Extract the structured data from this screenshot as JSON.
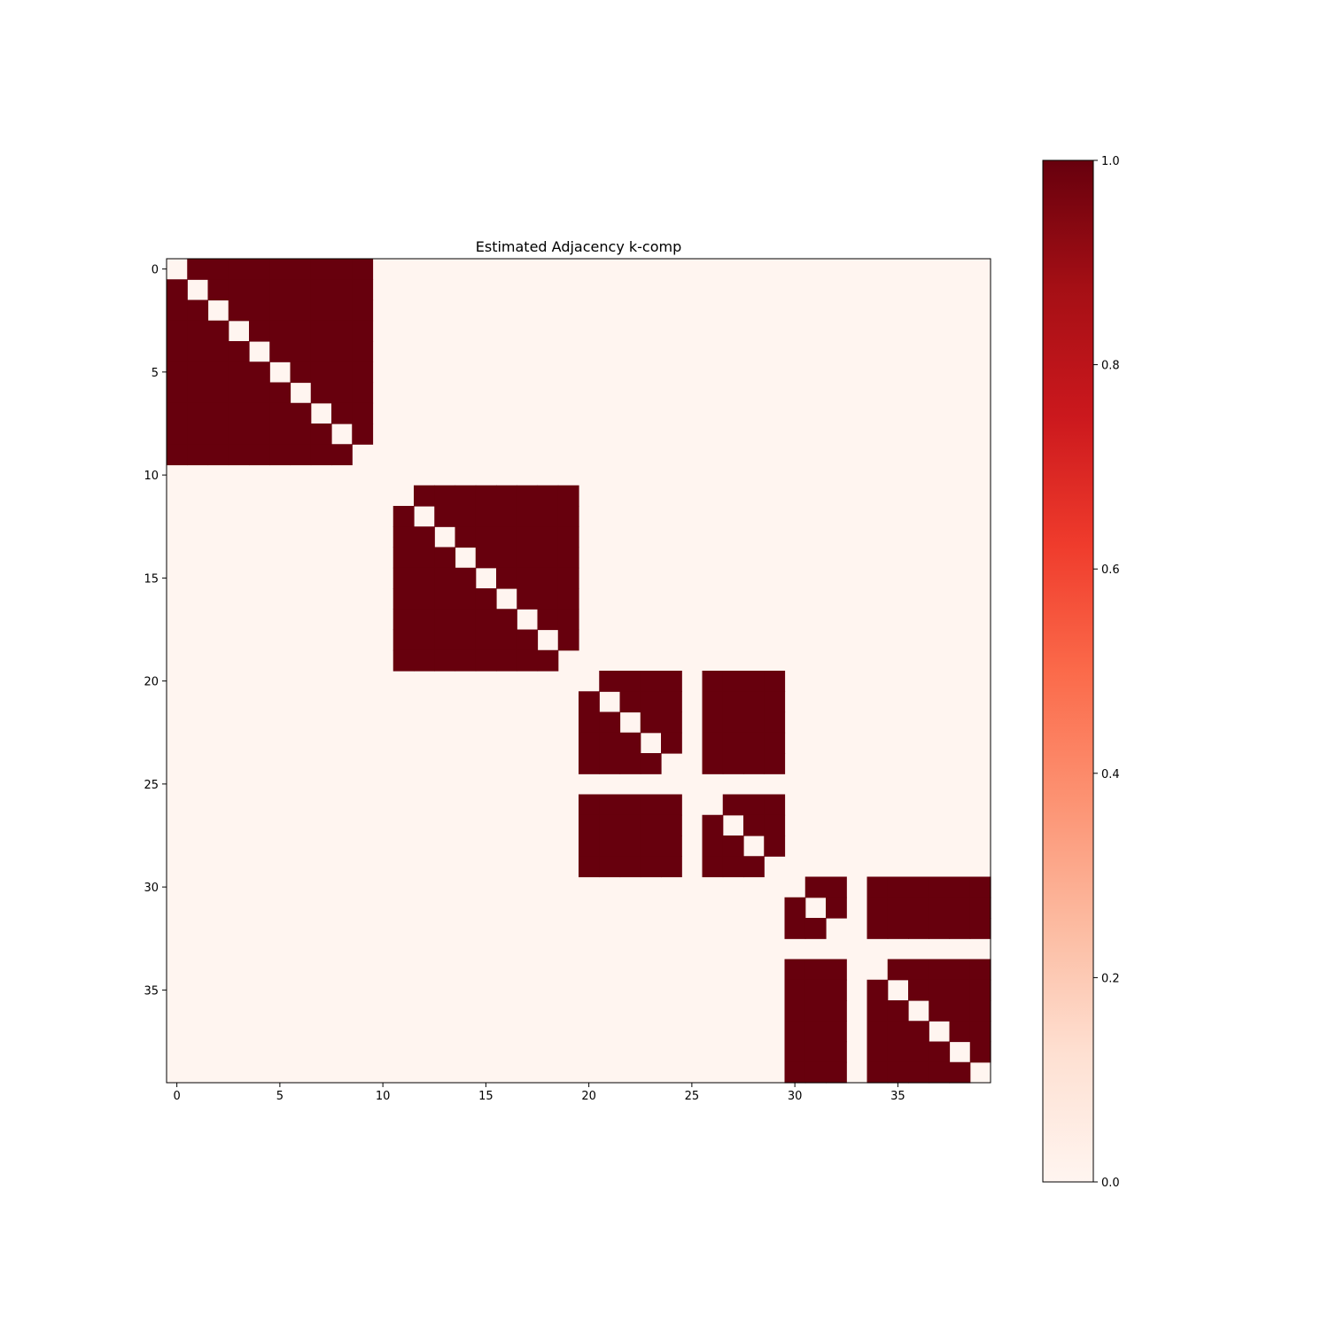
{
  "chart_data": {
    "type": "heatmap",
    "title": "Estimated Adjacency k-comp",
    "xlabel": "",
    "ylabel": "",
    "size": 40,
    "colormap": "Reds",
    "xticks": [
      0,
      5,
      10,
      15,
      20,
      25,
      30,
      35
    ],
    "xtick_labels": [
      "0",
      "5",
      "10",
      "15",
      "20",
      "25",
      "30",
      "35"
    ],
    "yticks": [
      0,
      5,
      10,
      15,
      20,
      25,
      30,
      35
    ],
    "ytick_labels": [
      "0",
      "5",
      "10",
      "15",
      "20",
      "25",
      "30",
      "35"
    ],
    "blocks": [
      {
        "rows": [
          0,
          9
        ],
        "cols": [
          0,
          9
        ],
        "value": 1,
        "diagonal": 0
      },
      {
        "rows": [
          11,
          19
        ],
        "cols": [
          11,
          19
        ],
        "value": 1,
        "diagonal": 0
      },
      {
        "rows": [
          20,
          24
        ],
        "cols": [
          20,
          24
        ],
        "value": 1,
        "diagonal": 0
      },
      {
        "rows": [
          20,
          24
        ],
        "cols": [
          26,
          29
        ],
        "value": 1
      },
      {
        "rows": [
          26,
          29
        ],
        "cols": [
          20,
          24
        ],
        "value": 1
      },
      {
        "rows": [
          26,
          29
        ],
        "cols": [
          26,
          29
        ],
        "value": 1,
        "diagonal": 0
      },
      {
        "rows": [
          30,
          32
        ],
        "cols": [
          30,
          32
        ],
        "value": 1,
        "diagonal": 0
      },
      {
        "rows": [
          30,
          32
        ],
        "cols": [
          34,
          39
        ],
        "value": 1
      },
      {
        "rows": [
          34,
          39
        ],
        "cols": [
          30,
          32
        ],
        "value": 1
      },
      {
        "rows": [
          34,
          39
        ],
        "cols": [
          34,
          39
        ],
        "value": 1,
        "diagonal": 0
      }
    ],
    "default_value": 0,
    "colorbar": {
      "range": [
        0.0,
        1.0
      ],
      "ticks": [
        0.0,
        0.2,
        0.4,
        0.6,
        0.8,
        1.0
      ],
      "tick_labels": [
        "0.0",
        "0.2",
        "0.4",
        "0.6",
        "0.8",
        "1.0"
      ]
    },
    "colors": {
      "low": "#fff5f0",
      "high": "#67000d",
      "gradient": [
        "#fff5f0",
        "#fee0d2",
        "#fcbba1",
        "#fc9272",
        "#fb6a4a",
        "#ef3b2c",
        "#cb181d",
        "#a50f15",
        "#67000d"
      ]
    }
  }
}
